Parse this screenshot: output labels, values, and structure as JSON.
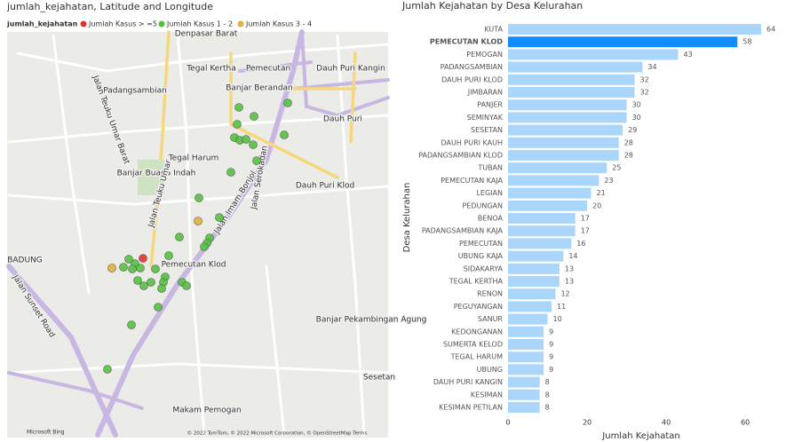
{
  "map": {
    "title": "jumlah_kejahatan, Latitude and Longitude",
    "legend_title": "jumlah_kejahatan",
    "legend": [
      {
        "name": "Jumlah Kasus > =5",
        "color": "#e8312f"
      },
      {
        "name": "Jumlah Kasus 1 - 2",
        "color": "#55c23f"
      },
      {
        "name": "Jumlah Kasus 3 - 4",
        "color": "#e3b13b"
      }
    ],
    "labels": [
      "Denpasar Barat",
      "Tegal Kertha",
      "Pemecutan",
      "Dauh Puri Kangin",
      "Padangsambian",
      "Banjar Berandan",
      "Dauh Puri",
      "Tegal Harum",
      "Banjar Buana Indah",
      "Dauh Puri Klod",
      "BADUNG",
      "Pemecutan Klod",
      "Jalan Imam Bonjol",
      "Jalan Sunset Road",
      "Jalan Teuku Umar",
      "Banjar Pekambingan Agung",
      "Makam Pemogan",
      "Sesetan",
      "Jalan Serokadan",
      "Jalan Teuku Umar Barat"
    ],
    "copyright": "© 2022 TomTom, © 2022 Microsoft Corporation, © OpenStreetMap  Terms",
    "logo": "Microsoft Bing"
  },
  "chart_data": {
    "type": "hbar",
    "title": "Jumlah Kejahatan by Desa Kelurahan",
    "x_label": "Jumlah Kejahatan",
    "y_label": "Desa Kelurahan",
    "categories": [
      "KUTA",
      "PEMECUTAN KLOD",
      "PEMOGAN",
      "PADANGSAMBIAN",
      "DAUH PURI KLOD",
      "JIMBARAN",
      "PANJER",
      "SEMINYAK",
      "SESETAN",
      "DAUH PURI KAUH",
      "PADANGSAMBIAN KLOD",
      "TUBAN",
      "PEMECUTAN KAJA",
      "LEGIAN",
      "PEDUNGAN",
      "BENOA",
      "PADANGSAMBIAN KAJA",
      "PEMECUTAN",
      "UBUNG KAJA",
      "SIDAKARYA",
      "TEGAL KERTHA",
      "RENON",
      "PEGUYANGAN",
      "SANUR",
      "KEDONGANAN",
      "SUMERTA KELOD",
      "TEGAL HARUM",
      "UBUNG",
      "DAUH PURI KANGIN",
      "KESIMAN",
      "KESIMAN PETILAN"
    ],
    "values": [
      64,
      58,
      43,
      34,
      32,
      32,
      30,
      30,
      29,
      28,
      28,
      25,
      23,
      21,
      20,
      17,
      17,
      16,
      14,
      13,
      13,
      12,
      11,
      10,
      9,
      9,
      9,
      9,
      8,
      8,
      8
    ],
    "color": "#a9d6fa",
    "highlight": 1,
    "highlight_color": "#118dff",
    "xlim": [
      0,
      64
    ],
    "xticks": [
      0,
      20,
      40,
      60
    ]
  }
}
